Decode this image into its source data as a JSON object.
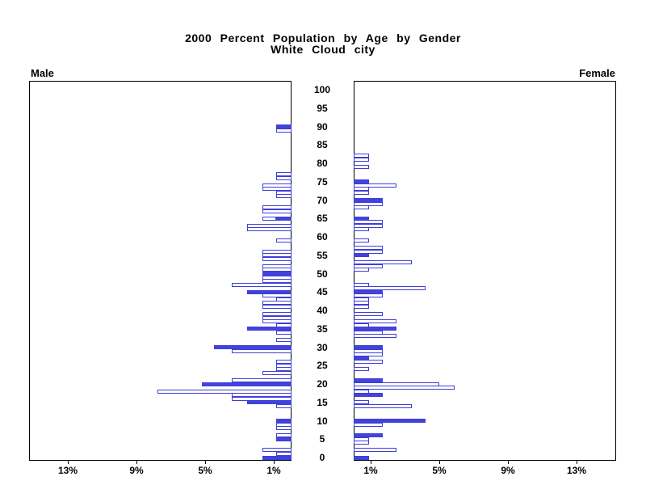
{
  "title": {
    "line1": "2000 Percent Population by Age by Gender",
    "line2": "White Cloud city"
  },
  "panels": {
    "male_label": "Male",
    "female_label": "Female"
  },
  "colors": {
    "bar_blue": "#4343dc",
    "bar_outline": "#3e3edb",
    "axis_black": "#000000"
  },
  "axis": {
    "age_ticks": [
      100,
      95,
      90,
      85,
      80,
      75,
      70,
      65,
      60,
      55,
      50,
      45,
      40,
      35,
      30,
      25,
      20,
      15,
      10,
      5,
      0
    ],
    "pct_ticks": [
      {
        "label": "13%",
        "value": 13
      },
      {
        "label": "9%",
        "value": 9
      },
      {
        "label": "5%",
        "value": 5
      },
      {
        "label": "1%",
        "value": 1
      }
    ]
  },
  "chart_data": {
    "type": "bar",
    "subtype": "population-pyramid",
    "units": "percent of total population",
    "x_range_each_side": [
      0,
      15.2
    ],
    "age_axis_range": [
      0,
      100
    ],
    "legend": "solid bars = highlighted ages; hollow bars = other single years of age",
    "male": [
      {
        "age": 90,
        "pct": 0.9,
        "solid": true
      },
      {
        "age": 89,
        "pct": 0.9,
        "solid": false
      },
      {
        "age": 77,
        "pct": 0.9,
        "solid": false
      },
      {
        "age": 76,
        "pct": 0.9,
        "solid": false
      },
      {
        "age": 74,
        "pct": 1.7,
        "solid": false
      },
      {
        "age": 73,
        "pct": 1.7,
        "solid": false
      },
      {
        "age": 72,
        "pct": 0.9,
        "solid": false
      },
      {
        "age": 71,
        "pct": 0.9,
        "solid": false
      },
      {
        "age": 68,
        "pct": 1.7,
        "solid": false
      },
      {
        "age": 67,
        "pct": 1.7,
        "solid": false
      },
      {
        "age": 65,
        "pct": 1.7,
        "solid": false,
        "solid_pct": 0.9
      },
      {
        "age": 63,
        "pct": 2.6,
        "solid": false
      },
      {
        "age": 62,
        "pct": 2.6,
        "solid": false
      },
      {
        "age": 59,
        "pct": 0.9,
        "solid": false
      },
      {
        "age": 56,
        "pct": 1.7,
        "solid": false
      },
      {
        "age": 55,
        "pct": 1.7,
        "solid": false
      },
      {
        "age": 54,
        "pct": 1.7,
        "solid": false
      },
      {
        "age": 52,
        "pct": 1.7,
        "solid": false
      },
      {
        "age": 51,
        "pct": 1.7,
        "solid": false
      },
      {
        "age": 50,
        "pct": 1.7,
        "solid": true
      },
      {
        "age": 49,
        "pct": 1.7,
        "solid": false
      },
      {
        "age": 48,
        "pct": 1.7,
        "solid": false
      },
      {
        "age": 47,
        "pct": 3.5,
        "solid": false
      },
      {
        "age": 45,
        "pct": 2.6,
        "solid": true
      },
      {
        "age": 44,
        "pct": 1.7,
        "solid": false
      },
      {
        "age": 43,
        "pct": 0.9,
        "solid": false
      },
      {
        "age": 42,
        "pct": 1.7,
        "solid": false
      },
      {
        "age": 41,
        "pct": 1.7,
        "solid": false
      },
      {
        "age": 39,
        "pct": 1.7,
        "solid": false
      },
      {
        "age": 38,
        "pct": 1.7,
        "solid": false
      },
      {
        "age": 37,
        "pct": 1.7,
        "solid": false
      },
      {
        "age": 36,
        "pct": 0.9,
        "solid": false
      },
      {
        "age": 35,
        "pct": 2.6,
        "solid": true
      },
      {
        "age": 34,
        "pct": 0.9,
        "solid": false
      },
      {
        "age": 32,
        "pct": 0.9,
        "solid": false
      },
      {
        "age": 30,
        "pct": 4.5,
        "solid": true
      },
      {
        "age": 29,
        "pct": 3.5,
        "solid": false
      },
      {
        "age": 26,
        "pct": 0.9,
        "solid": false
      },
      {
        "age": 25,
        "pct": 0.9,
        "solid": false
      },
      {
        "age": 24,
        "pct": 0.9,
        "solid": false
      },
      {
        "age": 23,
        "pct": 1.7,
        "solid": false
      },
      {
        "age": 21,
        "pct": 3.5,
        "solid": false
      },
      {
        "age": 20,
        "pct": 5.2,
        "solid": true
      },
      {
        "age": 18,
        "pct": 7.8,
        "solid": false
      },
      {
        "age": 17,
        "pct": 3.5,
        "solid": false
      },
      {
        "age": 16,
        "pct": 3.5,
        "solid": false
      },
      {
        "age": 15,
        "pct": 2.6,
        "solid": true
      },
      {
        "age": 14,
        "pct": 0.9,
        "solid": false
      },
      {
        "age": 10,
        "pct": 0.9,
        "solid": true
      },
      {
        "age": 9,
        "pct": 0.9,
        "solid": false
      },
      {
        "age": 8,
        "pct": 0.9,
        "solid": false
      },
      {
        "age": 6,
        "pct": 0.9,
        "solid": false
      },
      {
        "age": 5,
        "pct": 0.9,
        "solid": true
      },
      {
        "age": 2,
        "pct": 1.7,
        "solid": false
      },
      {
        "age": 1,
        "pct": 0.9,
        "solid": false
      },
      {
        "age": 0,
        "pct": 1.7,
        "solid": true
      }
    ],
    "female": [
      {
        "age": 82,
        "pct": 0.9,
        "solid": false
      },
      {
        "age": 81,
        "pct": 0.9,
        "solid": false
      },
      {
        "age": 79,
        "pct": 0.9,
        "solid": false
      },
      {
        "age": 75,
        "pct": 0.9,
        "solid": true
      },
      {
        "age": 74,
        "pct": 2.5,
        "solid": false
      },
      {
        "age": 73,
        "pct": 0.9,
        "solid": false
      },
      {
        "age": 72,
        "pct": 0.9,
        "solid": false
      },
      {
        "age": 70,
        "pct": 1.7,
        "solid": true
      },
      {
        "age": 69,
        "pct": 1.7,
        "solid": false
      },
      {
        "age": 68,
        "pct": 0.9,
        "solid": false
      },
      {
        "age": 65,
        "pct": 0.9,
        "solid": true
      },
      {
        "age": 64,
        "pct": 1.7,
        "solid": false
      },
      {
        "age": 63,
        "pct": 1.7,
        "solid": false
      },
      {
        "age": 62,
        "pct": 0.9,
        "solid": false
      },
      {
        "age": 59,
        "pct": 0.9,
        "solid": false
      },
      {
        "age": 57,
        "pct": 1.7,
        "solid": false
      },
      {
        "age": 56,
        "pct": 1.7,
        "solid": false
      },
      {
        "age": 55,
        "pct": 0.9,
        "solid": true
      },
      {
        "age": 53,
        "pct": 3.4,
        "solid": false
      },
      {
        "age": 52,
        "pct": 1.7,
        "solid": false
      },
      {
        "age": 51,
        "pct": 0.9,
        "solid": false
      },
      {
        "age": 47,
        "pct": 0.9,
        "solid": false
      },
      {
        "age": 46,
        "pct": 4.2,
        "solid": false
      },
      {
        "age": 45,
        "pct": 1.7,
        "solid": true
      },
      {
        "age": 44,
        "pct": 1.7,
        "solid": false
      },
      {
        "age": 43,
        "pct": 0.9,
        "solid": false
      },
      {
        "age": 42,
        "pct": 0.9,
        "solid": false
      },
      {
        "age": 41,
        "pct": 0.9,
        "solid": false
      },
      {
        "age": 39,
        "pct": 1.7,
        "solid": false
      },
      {
        "age": 37,
        "pct": 2.5,
        "solid": false
      },
      {
        "age": 36,
        "pct": 0.9,
        "solid": false
      },
      {
        "age": 35,
        "pct": 2.5,
        "solid": true
      },
      {
        "age": 34,
        "pct": 1.7,
        "solid": false
      },
      {
        "age": 33,
        "pct": 2.5,
        "solid": false
      },
      {
        "age": 30,
        "pct": 1.7,
        "solid": true
      },
      {
        "age": 29,
        "pct": 1.7,
        "solid": false
      },
      {
        "age": 28,
        "pct": 1.7,
        "solid": false
      },
      {
        "age": 27,
        "pct": 0.9,
        "solid": true
      },
      {
        "age": 26,
        "pct": 1.7,
        "solid": false
      },
      {
        "age": 24,
        "pct": 0.9,
        "solid": false
      },
      {
        "age": 21,
        "pct": 1.7,
        "solid": true
      },
      {
        "age": 20,
        "pct": 5.0,
        "solid": false
      },
      {
        "age": 19,
        "pct": 5.9,
        "solid": false
      },
      {
        "age": 18,
        "pct": 0.9,
        "solid": false
      },
      {
        "age": 17,
        "pct": 1.7,
        "solid": true
      },
      {
        "age": 15,
        "pct": 0.9,
        "solid": false
      },
      {
        "age": 14,
        "pct": 3.4,
        "solid": false
      },
      {
        "age": 10,
        "pct": 4.2,
        "solid": true
      },
      {
        "age": 9,
        "pct": 1.7,
        "solid": false
      },
      {
        "age": 6,
        "pct": 1.7,
        "solid": true
      },
      {
        "age": 5,
        "pct": 0.9,
        "solid": false
      },
      {
        "age": 4,
        "pct": 0.9,
        "solid": false
      },
      {
        "age": 2,
        "pct": 2.5,
        "solid": false
      },
      {
        "age": 0,
        "pct": 0.9,
        "solid": true
      }
    ]
  }
}
